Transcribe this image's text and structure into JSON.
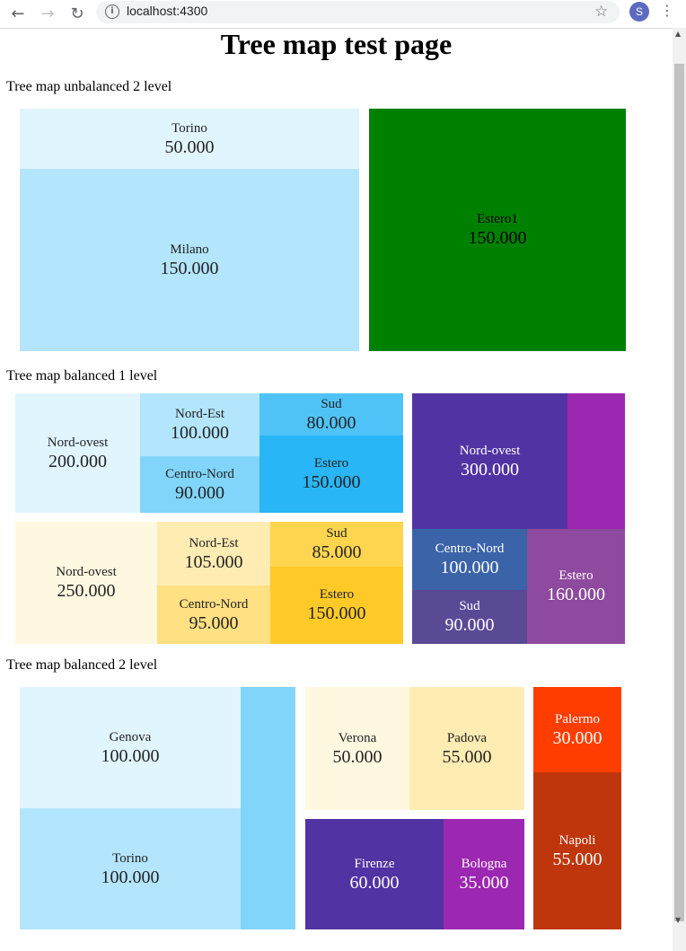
{
  "browser": {
    "url": "localhost:4300",
    "avatar_letter": "S"
  },
  "page": {
    "title": "Tree map test page"
  },
  "sections": {
    "unbalanced2": {
      "title": "Tree map unbalanced 2 level",
      "cells": {
        "torino": {
          "label": "Torino",
          "value": "50.000"
        },
        "milano": {
          "label": "Milano",
          "value": "150.000"
        },
        "estero1": {
          "label": "Estero1",
          "value": "150.000"
        }
      }
    },
    "balanced1": {
      "title": "Tree map balanced 1 level",
      "blue": {
        "nordovest": {
          "label": "Nord-ovest",
          "value": "200.000"
        },
        "nordest": {
          "label": "Nord-Est",
          "value": "100.000"
        },
        "centronord": {
          "label": "Centro-Nord",
          "value": "90.000"
        },
        "sud": {
          "label": "Sud",
          "value": "80.000"
        },
        "estero": {
          "label": "Estero",
          "value": "150.000"
        }
      },
      "yellow": {
        "nordovest": {
          "label": "Nord-ovest",
          "value": "250.000"
        },
        "nordest": {
          "label": "Nord-Est",
          "value": "105.000"
        },
        "centronord": {
          "label": "Centro-Nord",
          "value": "95.000"
        },
        "sud": {
          "label": "Sud",
          "value": "85.000"
        },
        "estero": {
          "label": "Estero",
          "value": "150.000"
        }
      },
      "purple": {
        "nordovest": {
          "label": "Nord-ovest",
          "value": "300.000"
        },
        "centronord": {
          "label": "Centro-Nord",
          "value": "100.000"
        },
        "sud": {
          "label": "Sud",
          "value": "90.000"
        },
        "estero": {
          "label": "Estero",
          "value": "160.000"
        }
      }
    },
    "balanced2": {
      "title": "Tree map balanced 2 level",
      "cells": {
        "genova": {
          "label": "Genova",
          "value": "100.000"
        },
        "torino": {
          "label": "Torino",
          "value": "100.000"
        },
        "verona": {
          "label": "Verona",
          "value": "50.000"
        },
        "padova": {
          "label": "Padova",
          "value": "55.000"
        },
        "firenze": {
          "label": "Firenze",
          "value": "60.000"
        },
        "bologna": {
          "label": "Bologna",
          "value": "35.000"
        },
        "palermo": {
          "label": "Palermo",
          "value": "30.000"
        },
        "napoli": {
          "label": "Napoli",
          "value": "55.000"
        }
      }
    }
  },
  "colors": {
    "light_blue_1": "#e1f5fe",
    "light_blue_2": "#b3e5fc",
    "light_blue_3": "#81d4fa",
    "light_blue_4": "#4fc3f7",
    "light_blue_5": "#29b6f6",
    "green": "#008000",
    "amber_1": "#fff8e1",
    "amber_2": "#ffecb3",
    "amber_3": "#ffe082",
    "amber_4": "#ffd54f",
    "amber_5": "#ffca28",
    "deep_purple": "#5133a3",
    "purple": "#9c27b0",
    "orange_red": "#ff3d00",
    "dark_orange": "#bf360c"
  }
}
